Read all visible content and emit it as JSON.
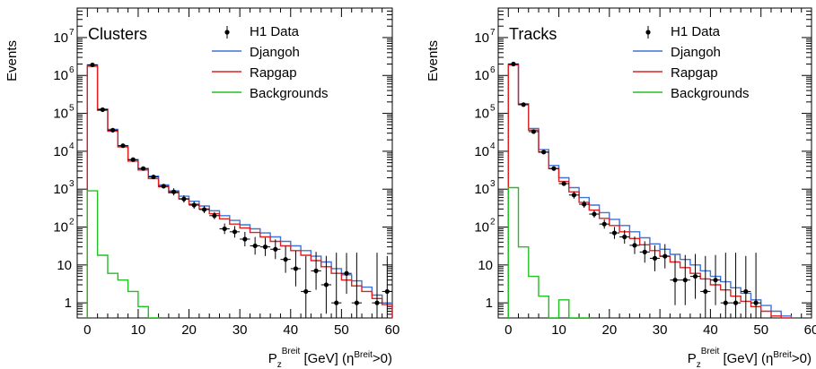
{
  "chart_data": [
    {
      "type": "step-histogram",
      "panel_label": "Clusters",
      "ylabel": "Events",
      "xlabel_main": "P",
      "xlabel_sub": "z",
      "xlabel_sup": "Breit",
      "xlabel_mid": " [GeV] (η",
      "xlabel_sup2": "Breit",
      "xlabel_end": ">0)",
      "xlim": [
        -2,
        60
      ],
      "ylim_log": [
        0.4,
        60000000
      ],
      "yscale": "log",
      "x_ticks": [
        "0",
        "10",
        "20",
        "30",
        "40",
        "50",
        "60"
      ],
      "y_ticks": [
        {
          "value": 1,
          "label": "1"
        },
        {
          "value": 10,
          "label": "10"
        },
        {
          "value": 100,
          "label": "10",
          "exp": "2"
        },
        {
          "value": 1000,
          "label": "10",
          "exp": "3"
        },
        {
          "value": 10000,
          "label": "10",
          "exp": "4"
        },
        {
          "value": 100000,
          "label": "10",
          "exp": "5"
        },
        {
          "value": 1000000,
          "label": "10",
          "exp": "6"
        },
        {
          "value": 10000000,
          "label": "10",
          "exp": "7"
        }
      ],
      "legend": [
        {
          "name": "H1 Data",
          "kind": "data"
        },
        {
          "name": "Djangoh",
          "kind": "line",
          "color": "#3f73d6"
        },
        {
          "name": "Rapgap",
          "kind": "line",
          "color": "#e02020"
        },
        {
          "name": "Backgrounds",
          "kind": "line",
          "color": "#22c022"
        }
      ],
      "bin_edges": [
        0,
        2,
        4,
        6,
        8,
        10,
        12,
        14,
        16,
        18,
        20,
        22,
        24,
        26,
        28,
        30,
        32,
        34,
        36,
        38,
        40,
        42,
        44,
        46,
        48,
        50,
        52,
        54,
        56,
        58,
        60
      ],
      "series": [
        {
          "name": "Djangoh",
          "color": "#3f73d6",
          "values": [
            1900000,
            130000,
            38000,
            14000,
            6000,
            3500,
            2200,
            1300,
            900,
            650,
            480,
            360,
            270,
            200,
            150,
            115,
            90,
            70,
            55,
            42,
            32,
            24,
            17,
            12,
            8,
            5.5,
            3.8,
            2.6,
            1.6,
            1.0
          ]
        },
        {
          "name": "Rapgap",
          "color": "#e02020",
          "values": [
            1750000,
            120000,
            34000,
            13000,
            5500,
            3200,
            1900,
            1150,
            800,
            560,
            400,
            300,
            225,
            165,
            120,
            95,
            72,
            55,
            42,
            32,
            24,
            18,
            13,
            9,
            6,
            4,
            2.8,
            2.0,
            1.3,
            0.9
          ]
        },
        {
          "name": "Backgrounds",
          "color": "#22c022",
          "values": [
            900,
            18,
            6,
            4,
            2,
            0.8,
            0.3
          ]
        }
      ],
      "data_points": [
        {
          "x": 1,
          "y": 1900000
        },
        {
          "x": 3,
          "y": 125000
        },
        {
          "x": 5,
          "y": 36000
        },
        {
          "x": 7,
          "y": 14000
        },
        {
          "x": 9,
          "y": 6000
        },
        {
          "x": 11,
          "y": 3500
        },
        {
          "x": 13,
          "y": 2100
        },
        {
          "x": 15,
          "y": 1200
        },
        {
          "x": 17,
          "y": 850
        },
        {
          "x": 19,
          "y": 550
        },
        {
          "x": 21,
          "y": 380
        },
        {
          "x": 23,
          "y": 290
        },
        {
          "x": 25,
          "y": 200
        },
        {
          "x": 27,
          "y": 90
        },
        {
          "x": 29,
          "y": 75
        },
        {
          "x": 31,
          "y": 48
        },
        {
          "x": 33,
          "y": 32
        },
        {
          "x": 35,
          "y": 30
        },
        {
          "x": 37,
          "y": 26
        },
        {
          "x": 39,
          "y": 14
        },
        {
          "x": 41,
          "y": 8
        },
        {
          "x": 43,
          "y": 2
        },
        {
          "x": 45,
          "y": 7
        },
        {
          "x": 47,
          "y": 3
        },
        {
          "x": 49,
          "y": 1
        },
        {
          "x": 51,
          "y": 6
        },
        {
          "x": 53,
          "y": 1
        },
        {
          "x": 57,
          "y": 1
        },
        {
          "x": 59,
          "y": 2
        }
      ]
    },
    {
      "type": "step-histogram",
      "panel_label": "Tracks",
      "ylabel": "Events",
      "xlabel_main": "P",
      "xlabel_sub": "z",
      "xlabel_sup": "Breit",
      "xlabel_mid": " [GeV] (η",
      "xlabel_sup2": "Breit",
      "xlabel_end": ">0)",
      "xlim": [
        -2,
        60
      ],
      "ylim_log": [
        0.4,
        60000000
      ],
      "yscale": "log",
      "x_ticks": [
        "0",
        "10",
        "20",
        "30",
        "40",
        "50",
        "60"
      ],
      "y_ticks": [
        {
          "value": 1,
          "label": "1"
        },
        {
          "value": 10,
          "label": "10"
        },
        {
          "value": 100,
          "label": "10",
          "exp": "2"
        },
        {
          "value": 1000,
          "label": "10",
          "exp": "3"
        },
        {
          "value": 10000,
          "label": "10",
          "exp": "4"
        },
        {
          "value": 100000,
          "label": "10",
          "exp": "5"
        },
        {
          "value": 1000000,
          "label": "10",
          "exp": "6"
        },
        {
          "value": 10000000,
          "label": "10",
          "exp": "7"
        }
      ],
      "legend": [
        {
          "name": "H1 Data",
          "kind": "data"
        },
        {
          "name": "Djangoh",
          "kind": "line",
          "color": "#3f73d6"
        },
        {
          "name": "Rapgap",
          "kind": "line",
          "color": "#e02020"
        },
        {
          "name": "Backgrounds",
          "kind": "line",
          "color": "#22c022"
        }
      ],
      "bin_edges": [
        0,
        2,
        4,
        6,
        8,
        10,
        12,
        14,
        16,
        18,
        20,
        22,
        24,
        26,
        28,
        30,
        32,
        34,
        36,
        38,
        40,
        42,
        44,
        46,
        48,
        50,
        52,
        54,
        56,
        58,
        60
      ],
      "series": [
        {
          "name": "Djangoh",
          "color": "#3f73d6",
          "values": [
            2000000,
            180000,
            40000,
            11000,
            4200,
            2000,
            1100,
            600,
            380,
            240,
            160,
            110,
            75,
            52,
            36,
            26,
            19,
            14,
            10,
            7,
            5,
            3.6,
            2.5,
            1.8,
            1.2,
            0.85,
            0.6,
            0.45
          ]
        },
        {
          "name": "Rapgap",
          "color": "#e02020",
          "values": [
            1900000,
            170000,
            36000,
            9500,
            3500,
            1600,
            850,
            450,
            280,
            170,
            110,
            75,
            50,
            34,
            24,
            17,
            12,
            8.5,
            6,
            4.3,
            3,
            2.2,
            1.5,
            1.1,
            0.8,
            0.6,
            0.45,
            0.4
          ]
        },
        {
          "name": "Backgrounds",
          "color": "#22c022",
          "values": [
            1100,
            30,
            5,
            1.5,
            0.4,
            1.2,
            0.4,
            0.3
          ]
        }
      ],
      "data_points": [
        {
          "x": 1,
          "y": 2000000
        },
        {
          "x": 3,
          "y": 170000
        },
        {
          "x": 5,
          "y": 33000
        },
        {
          "x": 7,
          "y": 9500
        },
        {
          "x": 9,
          "y": 3500
        },
        {
          "x": 11,
          "y": 1400
        },
        {
          "x": 13,
          "y": 700
        },
        {
          "x": 15,
          "y": 400
        },
        {
          "x": 17,
          "y": 220
        },
        {
          "x": 19,
          "y": 120
        },
        {
          "x": 21,
          "y": 70
        },
        {
          "x": 23,
          "y": 55
        },
        {
          "x": 25,
          "y": 33
        },
        {
          "x": 27,
          "y": 22
        },
        {
          "x": 29,
          "y": 15
        },
        {
          "x": 31,
          "y": 17
        },
        {
          "x": 33,
          "y": 4
        },
        {
          "x": 35,
          "y": 4
        },
        {
          "x": 37,
          "y": 5
        },
        {
          "x": 39,
          "y": 2
        },
        {
          "x": 41,
          "y": 4
        },
        {
          "x": 43,
          "y": 1
        },
        {
          "x": 45,
          "y": 1
        },
        {
          "x": 47,
          "y": 2
        },
        {
          "x": 49,
          "y": 1
        }
      ]
    }
  ]
}
